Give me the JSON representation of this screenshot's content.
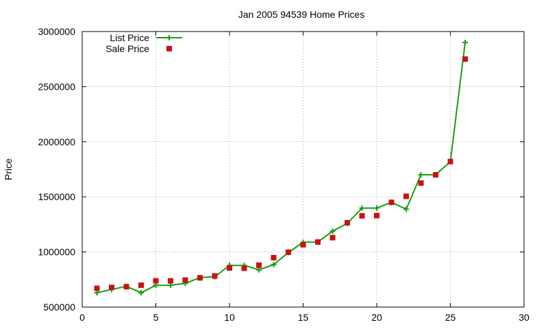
{
  "chart_data": {
    "type": "line",
    "title": "Jan 2005 94539 Home Prices",
    "xlabel": "",
    "ylabel": "Price",
    "xlim": [
      0,
      30
    ],
    "ylim": [
      500000,
      3000000
    ],
    "xticks": [
      "0",
      "5",
      "10",
      "15",
      "20",
      "25",
      "30"
    ],
    "yticks": [
      "500000",
      "1000000",
      "1500000",
      "2000000",
      "2500000",
      "3000000"
    ],
    "grid": true,
    "legend_position": "top-left",
    "series": [
      {
        "name": "List Price",
        "style": "line+plus",
        "color": "#11a011",
        "points": [
          [
            1,
            630000
          ],
          [
            2,
            660000
          ],
          [
            3,
            688000
          ],
          [
            4,
            630000
          ],
          [
            5,
            698000
          ],
          [
            6,
            698000
          ],
          [
            7,
            715000
          ],
          [
            8,
            768000
          ],
          [
            9,
            775000
          ],
          [
            10,
            878000
          ],
          [
            11,
            878000
          ],
          [
            12,
            838000
          ],
          [
            13,
            885000
          ],
          [
            14,
            995000
          ],
          [
            15,
            1088000
          ],
          [
            16,
            1090000
          ],
          [
            17,
            1188000
          ],
          [
            18,
            1260000
          ],
          [
            19,
            1398000
          ],
          [
            20,
            1398000
          ],
          [
            21,
            1450000
          ],
          [
            22,
            1388000
          ],
          [
            23,
            1700000
          ],
          [
            24,
            1700000
          ],
          [
            25,
            1820000
          ],
          [
            26,
            2900000
          ]
        ]
      },
      {
        "name": "Sale Price",
        "style": "square",
        "color": "#cc1111",
        "points": [
          [
            1,
            670000
          ],
          [
            2,
            678000
          ],
          [
            3,
            685000
          ],
          [
            4,
            698000
          ],
          [
            5,
            738000
          ],
          [
            6,
            738000
          ],
          [
            7,
            745000
          ],
          [
            8,
            765000
          ],
          [
            9,
            782000
          ],
          [
            10,
            855000
          ],
          [
            11,
            852000
          ],
          [
            12,
            880000
          ],
          [
            13,
            948000
          ],
          [
            14,
            998000
          ],
          [
            15,
            1065000
          ],
          [
            16,
            1090000
          ],
          [
            17,
            1130000
          ],
          [
            18,
            1265000
          ],
          [
            19,
            1328000
          ],
          [
            20,
            1330000
          ],
          [
            21,
            1450000
          ],
          [
            22,
            1505000
          ],
          [
            23,
            1625000
          ],
          [
            24,
            1700000
          ],
          [
            25,
            1820000
          ],
          [
            26,
            2750000
          ]
        ]
      }
    ]
  }
}
